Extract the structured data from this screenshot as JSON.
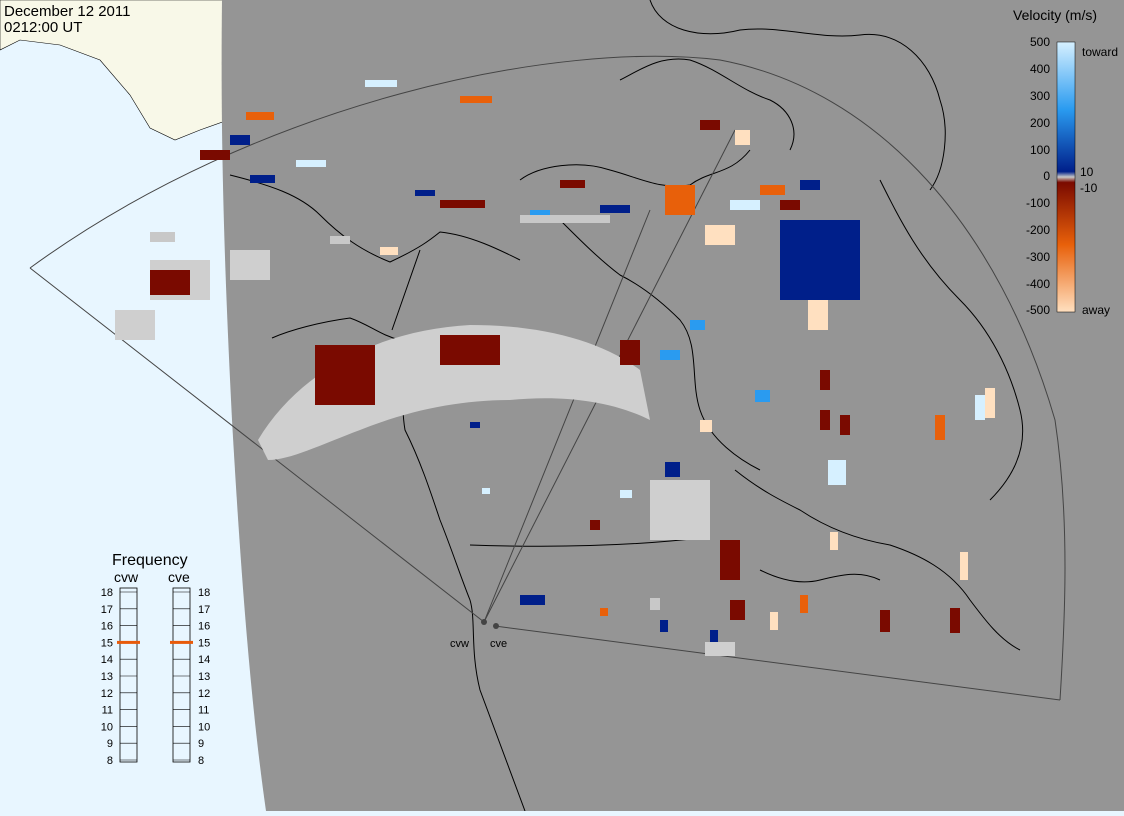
{
  "header": {
    "date": "December 12 2011",
    "time": "0212:00 UT"
  },
  "legend": {
    "title": "Velocity (m/s)",
    "tick_labels": [
      "500",
      "400",
      "300",
      "200",
      "100",
      "10",
      "0",
      "-10",
      "-100",
      "-200",
      "-300",
      "-400",
      "-500"
    ],
    "toward_label": "toward",
    "away_label": "away",
    "colors": {
      "toward_light": "#d6f0ff",
      "toward_mid": "#2a9bf0",
      "toward_dark": "#001f8a",
      "ground_scatter": "#c8c8c8",
      "away_dark": "#7a0a00",
      "away_mid": "#e8600a",
      "away_light": "#ffe0c0"
    }
  },
  "frequency": {
    "title": "Frequency",
    "radars": [
      {
        "name": "cvw",
        "selected_mhz": 15
      },
      {
        "name": "cve",
        "selected_mhz": 15
      }
    ],
    "scale_labels": [
      "18",
      "17",
      "16",
      "15",
      "14",
      "13",
      "12",
      "11",
      "10",
      "9",
      "8"
    ],
    "marker_color": "#e85a0a"
  },
  "map": {
    "colors": {
      "night_shading": "#959595",
      "day_ocean": "#e8f6ff",
      "day_land": "#f8f8e8",
      "ground_scatter": "#cfcfcf",
      "coastline": "#000000"
    },
    "radar_sites": [
      "cvw",
      "cve"
    ]
  }
}
